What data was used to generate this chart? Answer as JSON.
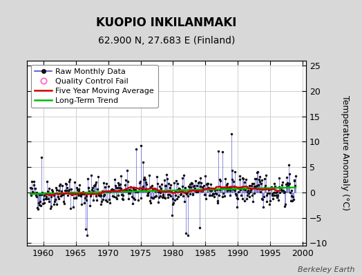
{
  "title": "KUOPIO INKILANMAKI",
  "subtitle": "62.900 N, 27.683 E (Finland)",
  "ylabel": "Temperature Anomaly (°C)",
  "watermark": "Berkeley Earth",
  "xlim": [
    1957.5,
    2000.5
  ],
  "ylim": [
    -10.5,
    26
  ],
  "yticks": [
    -10,
    -5,
    0,
    5,
    10,
    15,
    20,
    25
  ],
  "xticks": [
    1960,
    1965,
    1970,
    1975,
    1980,
    1985,
    1990,
    1995,
    2000
  ],
  "bg_color": "#d8d8d8",
  "plot_bg_color": "#ffffff",
  "grid_color": "#c8c8c8",
  "raw_line_color": "#4444cc",
  "raw_dot_color": "#111111",
  "five_yr_color": "#cc0000",
  "trend_color": "#00bb00",
  "qc_fail_color": "#ff66cc",
  "seed": 42,
  "n_months": 492,
  "start_year": 1958.0,
  "title_fontsize": 12,
  "subtitle_fontsize": 10,
  "tick_labelsize": 9,
  "legend_fontsize": 8
}
